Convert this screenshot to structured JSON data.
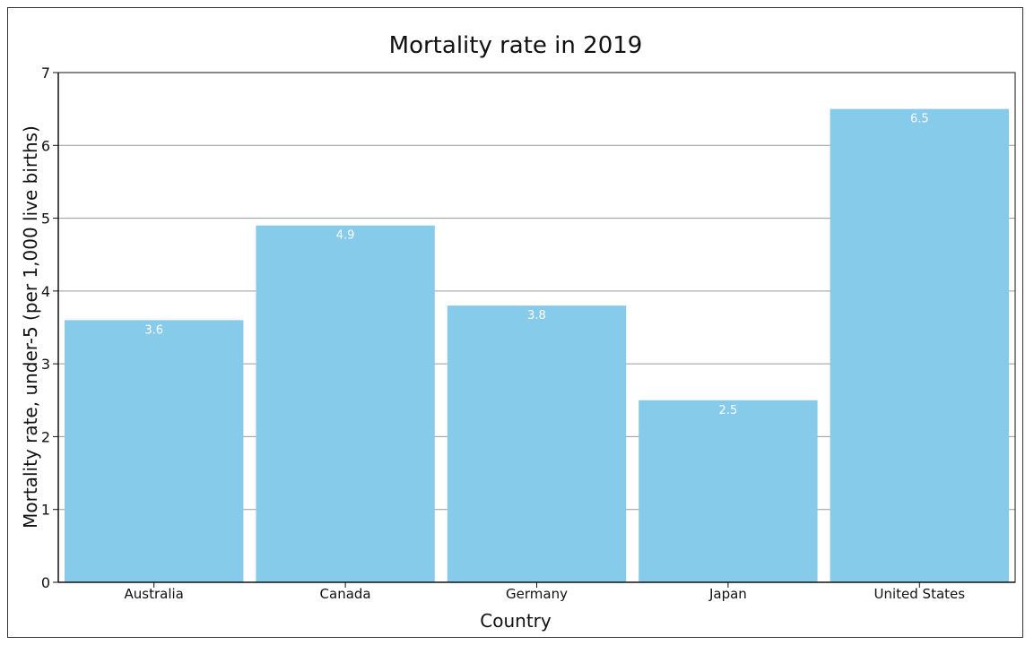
{
  "chart_data": {
    "type": "bar",
    "title": "Mortality rate in 2019",
    "xlabel": "Country",
    "ylabel": "Mortality rate, under-5 (per 1,000 live births)",
    "categories": [
      "Australia",
      "Canada",
      "Germany",
      "Japan",
      "United States"
    ],
    "values": [
      3.6,
      4.9,
      3.8,
      2.5,
      6.5
    ],
    "data_labels": [
      "3.6",
      "4.9",
      "3.8",
      "2.5",
      "6.5"
    ],
    "ylim": [
      0,
      7
    ],
    "yticks": [
      0,
      1,
      2,
      3,
      4,
      5,
      6,
      7
    ],
    "grid": true,
    "legend": "none"
  },
  "colors": {
    "bar": "#87CBEA",
    "grid": "#9a9a9a",
    "axis": "#111111",
    "data_label": "#ffffff"
  }
}
